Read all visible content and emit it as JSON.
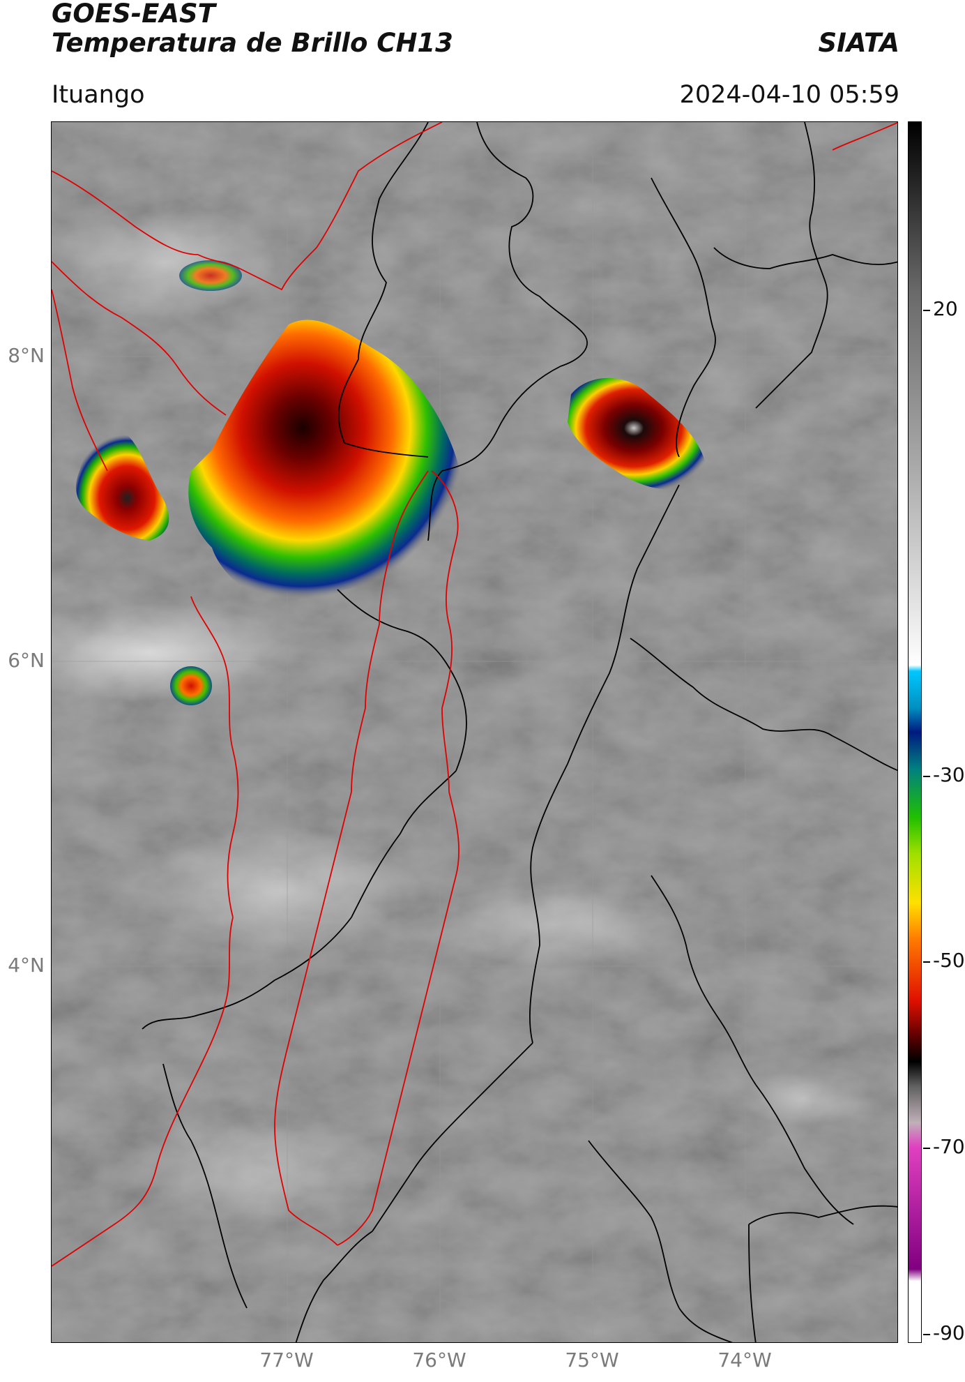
{
  "header": {
    "title": "GOES-EAST",
    "subtitle": "Temperatura de Brillo CH13",
    "brand": "SIATA",
    "location": "Ituango",
    "timestamp": "2024-04-10 05:59"
  },
  "map": {
    "lat_labels": [
      "8°N",
      "6°N",
      "4°N"
    ],
    "lon_labels": [
      "77°W",
      "76°W",
      "75°W",
      "74°W"
    ]
  },
  "colorbar": {
    "tick_labels": [
      "20",
      "-30",
      "-50",
      "-70",
      "-90"
    ],
    "colors": {
      "black": "#000000",
      "dark_red": "#5a0000",
      "red": "#e01000",
      "orange": "#ff7a00",
      "yellow": "#ffe000",
      "green": "#20c000",
      "teal": "#008080",
      "dark_blue": "#001a80",
      "cyan": "#00c8ff",
      "white": "#ffffff",
      "magenta": "#e040c0",
      "purple": "#800080"
    }
  }
}
